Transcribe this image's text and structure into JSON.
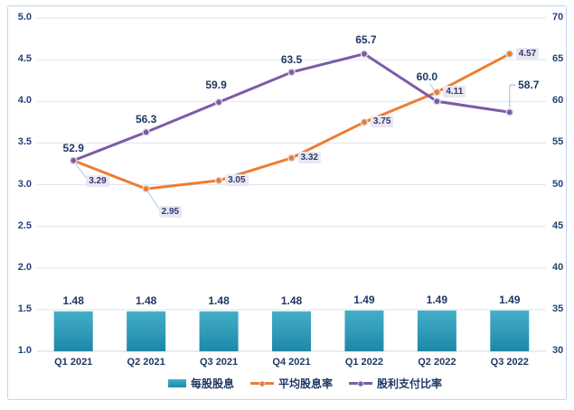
{
  "chart_data": {
    "type": "combo",
    "title": "",
    "categories": [
      "Q1 2021",
      "Q2 2021",
      "Q3 2021",
      "Q4 2021",
      "Q1 2022",
      "Q2 2022",
      "Q3 2022"
    ],
    "axes": {
      "left": {
        "min": 1.0,
        "max": 5.0,
        "step": 0.5,
        "tick_labels": [
          "5.0",
          "4.5",
          "4.0",
          "3.5",
          "3.0",
          "2.5",
          "2.0",
          "1.5",
          "1.0"
        ]
      },
      "right": {
        "min": 30,
        "max": 70,
        "step": 5,
        "tick_labels": [
          "70",
          "65",
          "60",
          "55",
          "50",
          "45",
          "40",
          "35",
          "30"
        ]
      }
    },
    "grid": true,
    "legend_position": "bottom",
    "series": [
      {
        "name": "每股股息",
        "type": "bar",
        "axis": "left",
        "color_top": "#44AFC9",
        "color_bottom": "#1F87A7",
        "values": [
          1.48,
          1.48,
          1.48,
          1.48,
          1.49,
          1.49,
          1.49
        ],
        "labels": [
          "1.48",
          "1.48",
          "1.48",
          "1.48",
          "1.49",
          "1.49",
          "1.49"
        ]
      },
      {
        "name": "平均股息率",
        "type": "line",
        "axis": "left",
        "color": "#ED7D31",
        "values": [
          3.29,
          2.95,
          3.05,
          3.32,
          3.75,
          4.11,
          4.57
        ],
        "labels": [
          "3.29",
          "2.95",
          "3.05",
          "3.32",
          "3.75",
          "4.11",
          "4.57"
        ],
        "label_style": "boxed",
        "label_placements": [
          {
            "dx": 14,
            "dy": 16,
            "leader": "down"
          },
          {
            "dx": 14,
            "dy": 19,
            "leader": "down"
          },
          {
            "dx": 7,
            "dy": -7,
            "leader": "none"
          },
          {
            "dx": 7,
            "dy": -7,
            "leader": "none"
          },
          {
            "dx": 7,
            "dy": -7,
            "leader": "none"
          },
          {
            "dx": 7,
            "dy": -7,
            "leader": "none"
          },
          {
            "dx": 7,
            "dy": -7,
            "leader": "none"
          }
        ]
      },
      {
        "name": "股利支付比率",
        "type": "line",
        "axis": "right",
        "color": "#7C5BA6",
        "values": [
          52.9,
          56.3,
          59.9,
          63.5,
          65.7,
          60.0,
          58.7
        ],
        "labels": [
          "52.9",
          "56.3",
          "59.9",
          "63.5",
          "65.7",
          "60.0",
          "58.7"
        ],
        "label_style": "bold",
        "label_placements": [
          {
            "dx": 0,
            "dy": -14,
            "leader": "none"
          },
          {
            "dx": 0,
            "dy": -14,
            "leader": "none"
          },
          {
            "dx": -3,
            "dy": -19,
            "leader": "none"
          },
          {
            "dx": 0,
            "dy": -14,
            "leader": "none"
          },
          {
            "dx": 2,
            "dy": -16,
            "leader": "none"
          },
          {
            "dx": -11,
            "dy": -27,
            "leader": "diag"
          },
          {
            "dx": 21,
            "dy": -30,
            "leader": "elbow"
          }
        ]
      }
    ],
    "colors": {
      "label_text": "#1F3864",
      "tick_text": "#24437C",
      "grid_line": "#DCE6F2",
      "axis_line": "#C9D9EC",
      "frame_border": "#BDD7EE",
      "leader_line": "#A9C7E8",
      "box_bg": "#E9E8F2",
      "box_text": "#2F3A70",
      "marker_ring": "#DCDBE6"
    }
  }
}
